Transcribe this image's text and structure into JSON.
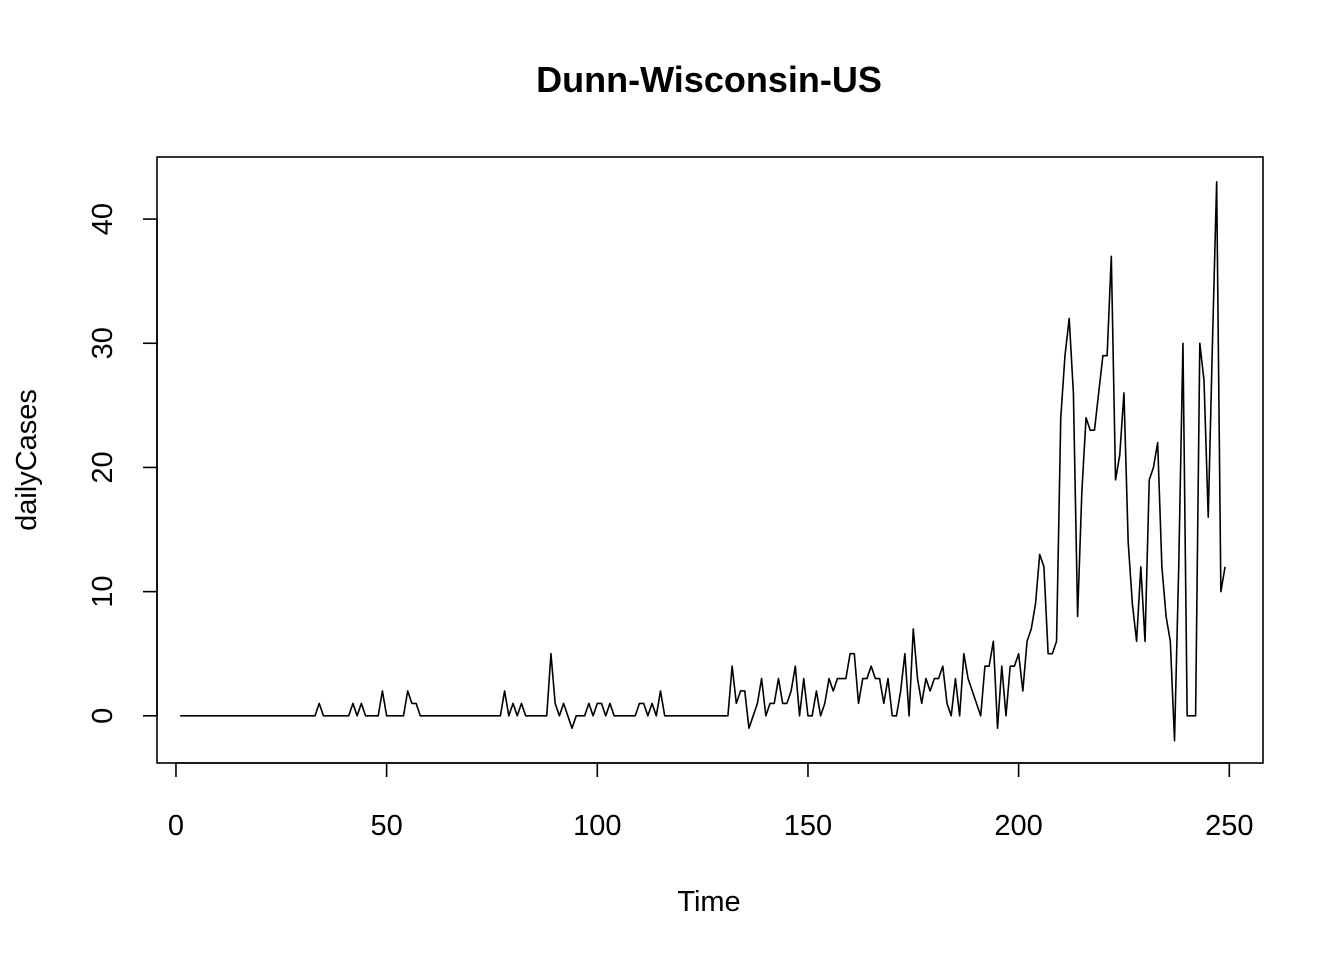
{
  "chart_data": {
    "type": "line",
    "title": "Dunn-Wisconsin-US",
    "xlabel": "Time",
    "ylabel": "dailyCases",
    "xlim": [
      -4.5,
      258
    ],
    "ylim": [
      -3.8,
      45
    ],
    "xticks": [
      0,
      50,
      100,
      150,
      200,
      250
    ],
    "xtick_labels": [
      "0",
      "50",
      "100",
      "150",
      "200",
      "250"
    ],
    "yticks": [
      0,
      10,
      20,
      30,
      40
    ],
    "ytick_labels": [
      "0",
      "10",
      "20",
      "30",
      "40"
    ],
    "grid": false,
    "legend": "none",
    "series_color": "#000000",
    "x_start": 1,
    "values": [
      0,
      0,
      0,
      0,
      0,
      0,
      0,
      0,
      0,
      0,
      0,
      0,
      0,
      0,
      0,
      0,
      0,
      0,
      0,
      0,
      0,
      0,
      0,
      0,
      0,
      0,
      0,
      0,
      0,
      0,
      0,
      0,
      0,
      1,
      0,
      0,
      0,
      0,
      0,
      0,
      0,
      1,
      0,
      1,
      0,
      0,
      0,
      0,
      2,
      0,
      0,
      0,
      0,
      0,
      2,
      1,
      1,
      0,
      0,
      0,
      0,
      0,
      0,
      0,
      0,
      0,
      0,
      0,
      0,
      0,
      0,
      0,
      0,
      0,
      0,
      0,
      0,
      2,
      0,
      1,
      0,
      1,
      0,
      0,
      0,
      0,
      0,
      0,
      5,
      1,
      0,
      1,
      0,
      -1,
      0,
      0,
      0,
      1,
      0,
      1,
      1,
      0,
      1,
      0,
      0,
      0,
      0,
      0,
      0,
      1,
      1,
      0,
      1,
      0,
      2,
      0,
      0,
      0,
      0,
      0,
      0,
      0,
      0,
      0,
      0,
      0,
      0,
      0,
      0,
      0,
      0,
      4,
      1,
      2,
      2,
      -1,
      0,
      1,
      3,
      0,
      1,
      1,
      3,
      1,
      1,
      2,
      4,
      0,
      3,
      0,
      0,
      2,
      0,
      1,
      3,
      2,
      3,
      3,
      3,
      5,
      5,
      1,
      3,
      3,
      4,
      3,
      3,
      1,
      3,
      0,
      0,
      2,
      5,
      0,
      7,
      3,
      1,
      3,
      2,
      3,
      3,
      4,
      1,
      0,
      3,
      0,
      5,
      3,
      2,
      1,
      0,
      4,
      4,
      6,
      -1,
      4,
      0,
      4,
      4,
      5,
      2,
      6,
      7,
      9,
      13,
      12,
      5,
      5,
      6,
      24,
      29,
      32,
      26,
      8,
      18,
      24,
      23,
      23,
      26,
      29,
      29,
      37,
      19,
      21,
      26,
      14,
      9,
      6,
      12,
      6,
      19,
      20,
      22,
      12,
      8,
      6,
      -2,
      12,
      30,
      0,
      0,
      0,
      30,
      27,
      16,
      30,
      43,
      10,
      12
    ]
  }
}
